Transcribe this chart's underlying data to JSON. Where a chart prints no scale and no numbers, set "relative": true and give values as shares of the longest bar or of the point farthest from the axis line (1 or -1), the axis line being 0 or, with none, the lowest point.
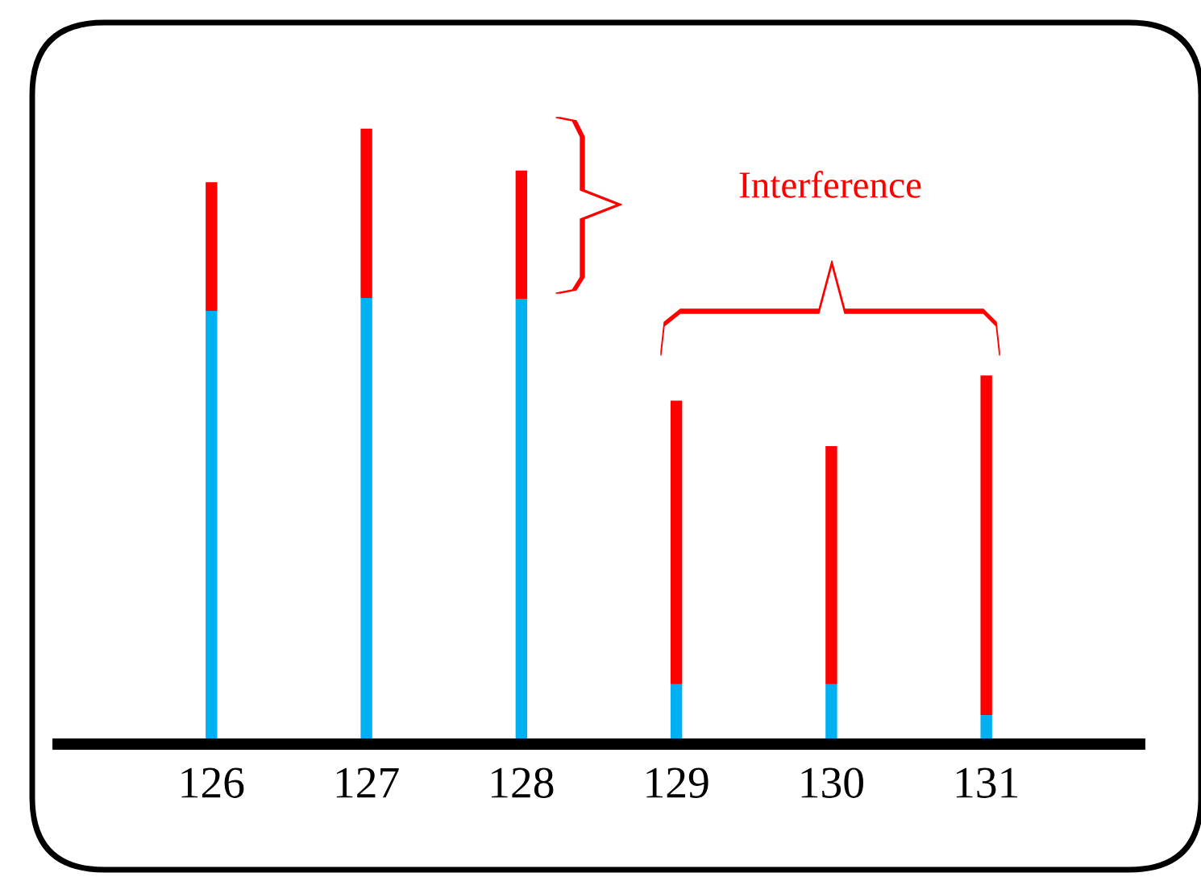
{
  "chart_data": {
    "type": "bar",
    "stacked": true,
    "relative": true,
    "categories": [
      "126",
      "127",
      "128",
      "129",
      "130",
      "131"
    ],
    "series": [
      {
        "color": "#00b0f0",
        "values": [
          0.704,
          0.725,
          0.723,
          0.097,
          0.097,
          0.047
        ]
      },
      {
        "color": "#ff0000",
        "values": [
          0.209,
          0.275,
          0.209,
          0.461,
          0.387,
          0.552
        ]
      }
    ],
    "annotations": [
      "Interference"
    ],
    "grid": false
  }
}
